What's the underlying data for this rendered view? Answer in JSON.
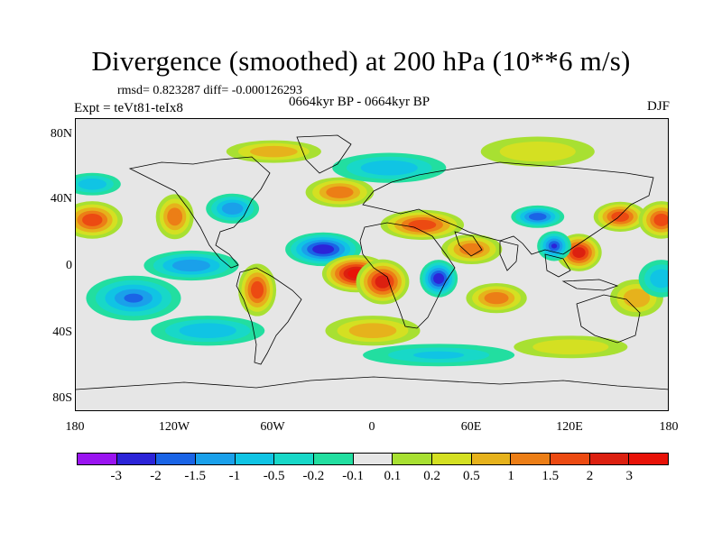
{
  "title": "Divergence (smoothed) at 200 hPa (10**6 m/s)",
  "stats_line": "rmsd= 0.823287 diff= -0.000126293",
  "experiment": "Expt = teVt81-teIx8",
  "period": "0664kyr BP - 0664kyr BP",
  "season": "DJF",
  "y_ticks": [
    "80N",
    "40N",
    "0",
    "40S",
    "80S"
  ],
  "x_ticks": [
    "180",
    "120W",
    "60W",
    "0",
    "60E",
    "120E",
    "180"
  ],
  "colorbar": {
    "labels": [
      "-3",
      "-2",
      "-1.5",
      "-1",
      "-0.5",
      "-0.2",
      "-0.1",
      "0.1",
      "0.2",
      "0.5",
      "1",
      "1.5",
      "2",
      "3"
    ],
    "colors": [
      "#9a14f0",
      "#2c24d8",
      "#1a64e6",
      "#1aa0ea",
      "#10c4e4",
      "#18d8c8",
      "#22dea0",
      "#e6e6e6",
      "#a8e032",
      "#d4e022",
      "#e6b21c",
      "#ec7e16",
      "#ec4a12",
      "#dc2010",
      "#e81208"
    ]
  },
  "map_regions": [
    {
      "lon": -30,
      "lat": 10,
      "value": -2.2,
      "rx": 20,
      "ry": 9
    },
    {
      "lon": -10,
      "lat": -5,
      "value": 3.2,
      "rx": 18,
      "ry": 10
    },
    {
      "lon": 6,
      "lat": -10,
      "value": 3.0,
      "rx": 14,
      "ry": 12
    },
    {
      "lon": 40,
      "lat": -8,
      "value": -2.3,
      "rx": 10,
      "ry": 10
    },
    {
      "lon": 125,
      "lat": 8,
      "value": 2.8,
      "rx": 12,
      "ry": 10
    },
    {
      "lon": 110,
      "lat": 12,
      "value": -2.0,
      "rx": 9,
      "ry": 8
    },
    {
      "lon": 100,
      "lat": 30,
      "value": -1.8,
      "rx": 14,
      "ry": 6
    },
    {
      "lon": 150,
      "lat": 30,
      "value": 1.8,
      "rx": 14,
      "ry": 8
    },
    {
      "lon": 30,
      "lat": 25,
      "value": 1.6,
      "rx": 22,
      "ry": 8
    },
    {
      "lon": -170,
      "lat": 28,
      "value": 1.9,
      "rx": 16,
      "ry": 10
    },
    {
      "lon": 175,
      "lat": 28,
      "value": 1.9,
      "rx": 12,
      "ry": 10
    },
    {
      "lon": -85,
      "lat": 35,
      "value": -1.4,
      "rx": 14,
      "ry": 8
    },
    {
      "lon": -120,
      "lat": 30,
      "value": 1.2,
      "rx": 10,
      "ry": 12
    },
    {
      "lon": -110,
      "lat": 0,
      "value": -1.2,
      "rx": 25,
      "ry": 8
    },
    {
      "lon": -145,
      "lat": -20,
      "value": -1.5,
      "rx": 25,
      "ry": 12
    },
    {
      "lon": -70,
      "lat": -15,
      "value": 1.6,
      "rx": 10,
      "ry": 14
    },
    {
      "lon": -20,
      "lat": 45,
      "value": 1.3,
      "rx": 18,
      "ry": 8
    },
    {
      "lon": 60,
      "lat": 10,
      "value": 1.5,
      "rx": 16,
      "ry": 8
    },
    {
      "lon": 75,
      "lat": -20,
      "value": 1.2,
      "rx": 16,
      "ry": 8
    },
    {
      "lon": 160,
      "lat": -20,
      "value": 1.0,
      "rx": 14,
      "ry": 10
    },
    {
      "lon": 10,
      "lat": 60,
      "value": -0.8,
      "rx": 30,
      "ry": 8
    },
    {
      "lon": -60,
      "lat": 70,
      "value": 0.6,
      "rx": 25,
      "ry": 6
    },
    {
      "lon": 100,
      "lat": 70,
      "value": 0.4,
      "rx": 30,
      "ry": 8
    },
    {
      "lon": 0,
      "lat": -40,
      "value": 1.0,
      "rx": 25,
      "ry": 8
    },
    {
      "lon": -100,
      "lat": -40,
      "value": -0.6,
      "rx": 30,
      "ry": 8
    },
    {
      "lon": 40,
      "lat": -55,
      "value": -0.5,
      "rx": 40,
      "ry": 6
    },
    {
      "lon": 120,
      "lat": -50,
      "value": 0.5,
      "rx": 30,
      "ry": 6
    },
    {
      "lon": -170,
      "lat": 50,
      "value": -0.8,
      "rx": 15,
      "ry": 6
    },
    {
      "lon": 175,
      "lat": -8,
      "value": -0.9,
      "rx": 12,
      "ry": 10
    }
  ]
}
